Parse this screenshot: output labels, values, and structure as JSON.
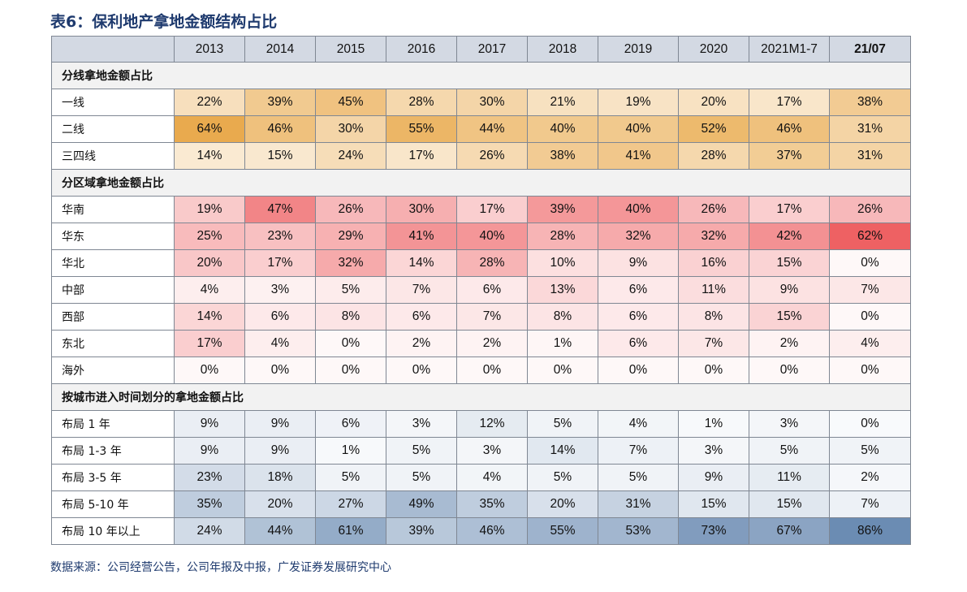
{
  "title": "表6：保利地产拿地金额结构占比",
  "header": [
    "2013",
    "2014",
    "2015",
    "2016",
    "2017",
    "2018",
    "2019",
    "2020",
    "2021M1-7",
    "21/07"
  ],
  "sections": [
    {
      "name": "分线拿地金额占比",
      "palette": "#e7a13a",
      "rows": [
        {
          "label": "一线",
          "values": [
            "22%",
            "39%",
            "45%",
            "28%",
            "30%",
            "21%",
            "19%",
            "20%",
            "17%",
            "38%"
          ]
        },
        {
          "label": "二线",
          "values": [
            "64%",
            "46%",
            "30%",
            "55%",
            "44%",
            "40%",
            "40%",
            "52%",
            "46%",
            "31%"
          ]
        },
        {
          "label": "三四线",
          "values": [
            "14%",
            "15%",
            "24%",
            "17%",
            "26%",
            "38%",
            "41%",
            "28%",
            "37%",
            "31%"
          ]
        }
      ]
    },
    {
      "name": "分区域拿地金额占比",
      "palette": "#ec4f52",
      "rows": [
        {
          "label": "华南",
          "values": [
            "19%",
            "47%",
            "26%",
            "30%",
            "17%",
            "39%",
            "40%",
            "26%",
            "17%",
            "26%"
          ]
        },
        {
          "label": "华东",
          "values": [
            "25%",
            "23%",
            "29%",
            "41%",
            "40%",
            "28%",
            "32%",
            "32%",
            "42%",
            "62%"
          ]
        },
        {
          "label": "华北",
          "values": [
            "20%",
            "17%",
            "32%",
            "14%",
            "28%",
            "10%",
            "9%",
            "16%",
            "15%",
            "0%"
          ]
        },
        {
          "label": "中部",
          "values": [
            "4%",
            "3%",
            "5%",
            "7%",
            "6%",
            "13%",
            "6%",
            "11%",
            "9%",
            "7%"
          ]
        },
        {
          "label": "西部",
          "values": [
            "14%",
            "6%",
            "8%",
            "6%",
            "7%",
            "8%",
            "6%",
            "8%",
            "15%",
            "0%"
          ]
        },
        {
          "label": "东北",
          "values": [
            "17%",
            "4%",
            "0%",
            "2%",
            "2%",
            "1%",
            "6%",
            "7%",
            "2%",
            "4%"
          ]
        },
        {
          "label": "海外",
          "values": [
            "0%",
            "0%",
            "0%",
            "0%",
            "0%",
            "0%",
            "0%",
            "0%",
            "0%",
            "0%"
          ]
        }
      ]
    },
    {
      "name": "按城市进入时间划分的拿地金额占比",
      "palette": "#5b7faa",
      "rows": [
        {
          "label": "布局 1 年",
          "values": [
            "9%",
            "9%",
            "6%",
            "3%",
            "12%",
            "5%",
            "4%",
            "1%",
            "3%",
            "0%"
          ]
        },
        {
          "label": "布局 1-3 年",
          "values": [
            "9%",
            "9%",
            "1%",
            "5%",
            "3%",
            "14%",
            "7%",
            "3%",
            "5%",
            "5%"
          ]
        },
        {
          "label": "布局 3-5 年",
          "values": [
            "23%",
            "18%",
            "5%",
            "5%",
            "4%",
            "5%",
            "5%",
            "9%",
            "11%",
            "2%"
          ]
        },
        {
          "label": "布局 5-10 年",
          "values": [
            "35%",
            "20%",
            "27%",
            "49%",
            "35%",
            "20%",
            "31%",
            "15%",
            "15%",
            "7%"
          ]
        },
        {
          "label": "布局 10 年以上",
          "values": [
            "24%",
            "44%",
            "61%",
            "39%",
            "46%",
            "55%",
            "53%",
            "73%",
            "67%",
            "86%"
          ]
        }
      ]
    }
  ],
  "source": "数据来源：公司经营公告，公司年报及中报，广发证券发展研究中心"
}
